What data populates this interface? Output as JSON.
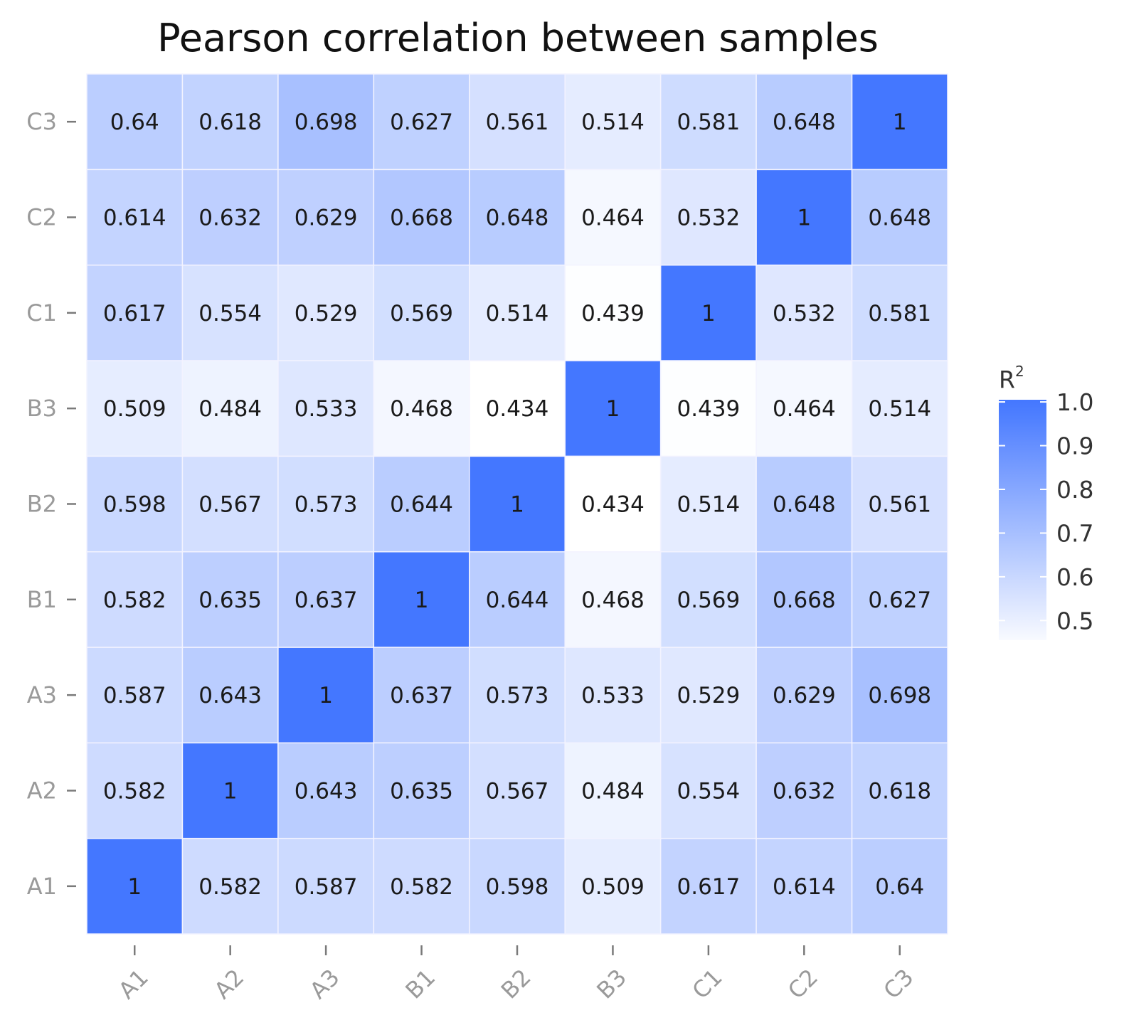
{
  "chart_data": {
    "type": "heatmap",
    "title": "Pearson correlation between samples",
    "x_categories": [
      "A1",
      "A2",
      "A3",
      "B1",
      "B2",
      "B3",
      "C1",
      "C2",
      "C3"
    ],
    "y_categories": [
      "A1",
      "A2",
      "A3",
      "B1",
      "B2",
      "B3",
      "C1",
      "C2",
      "C3"
    ],
    "values": [
      [
        1,
        0.582,
        0.587,
        0.582,
        0.598,
        0.509,
        0.617,
        0.614,
        0.64
      ],
      [
        0.582,
        1,
        0.643,
        0.635,
        0.567,
        0.484,
        0.554,
        0.632,
        0.618
      ],
      [
        0.587,
        0.643,
        1,
        0.637,
        0.573,
        0.533,
        0.529,
        0.629,
        0.698
      ],
      [
        0.582,
        0.635,
        0.637,
        1,
        0.644,
        0.468,
        0.569,
        0.668,
        0.627
      ],
      [
        0.598,
        0.567,
        0.573,
        0.644,
        1,
        0.434,
        0.514,
        0.648,
        0.561
      ],
      [
        0.509,
        0.484,
        0.533,
        0.468,
        0.434,
        1,
        0.439,
        0.464,
        0.514
      ],
      [
        0.617,
        0.554,
        0.529,
        0.569,
        0.514,
        0.439,
        1,
        0.532,
        0.581
      ],
      [
        0.614,
        0.632,
        0.629,
        0.668,
        0.648,
        0.464,
        0.532,
        1,
        0.648
      ],
      [
        0.64,
        0.618,
        0.698,
        0.627,
        0.561,
        0.514,
        0.581,
        0.648,
        1
      ]
    ],
    "legend": {
      "title": "R",
      "title_superscript": "2",
      "ticks": [
        1.0,
        0.9,
        0.8,
        0.7,
        0.6,
        0.5
      ],
      "tick_labels": [
        "1.0",
        "0.9",
        "0.8",
        "0.7",
        "0.6",
        "0.5"
      ],
      "range": [
        0.434,
        1.0
      ],
      "low_color": "#ffffff",
      "high_color": "#4477ff"
    },
    "colors": {
      "cell_border": "#f3f3ff",
      "tick": "#7a7a7a"
    }
  }
}
